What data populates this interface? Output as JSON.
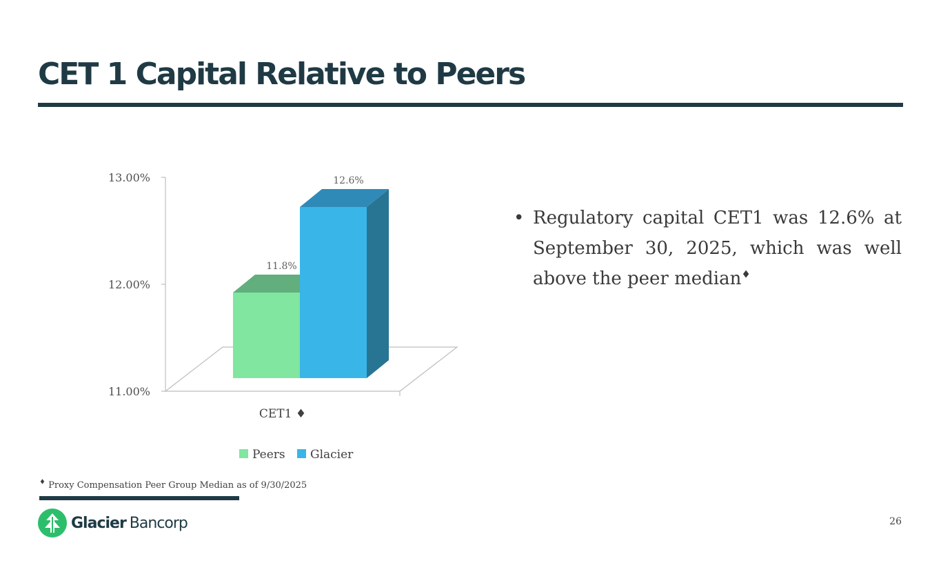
{
  "slide": {
    "title": "CET 1 Capital Relative to Peers",
    "page_number": "26"
  },
  "bullet": {
    "text": "Regulatory capital CET1 was 12.6% at September 30, 2025, which was well above the peer median",
    "marker": "♦"
  },
  "footnote": {
    "marker": "♦",
    "text": "Proxy Compensation Peer Group Median as of 9/30/2025"
  },
  "logo": {
    "word1": "Glacier",
    "word2": "Bancorp",
    "icon": "glacier-tree-icon"
  },
  "colors": {
    "title": "#1f3a44",
    "peers": "#80e6a0",
    "glacier": "#3ab5e8",
    "logo_green": "#2dbe6c"
  },
  "chart_data": {
    "type": "bar",
    "title": "",
    "categories": [
      "CET1 ♦"
    ],
    "series": [
      {
        "name": "Peers",
        "values": [
          11.8
        ],
        "data_label": "11.8%",
        "color": "#80e6a0",
        "top_color": "#62ae7c",
        "side_color": "#5aa873"
      },
      {
        "name": "Glacier",
        "values": [
          12.6
        ],
        "data_label": "12.6%",
        "color": "#3ab5e8",
        "top_color": "#2f8ab8",
        "side_color": "#277593"
      }
    ],
    "ylim": [
      11,
      13
    ],
    "yticks": [
      "11.00%",
      "12.00%",
      "13.00%"
    ],
    "xlabel": "",
    "ylabel": "",
    "legend_position": "bottom",
    "grid": false,
    "style": "3d"
  }
}
